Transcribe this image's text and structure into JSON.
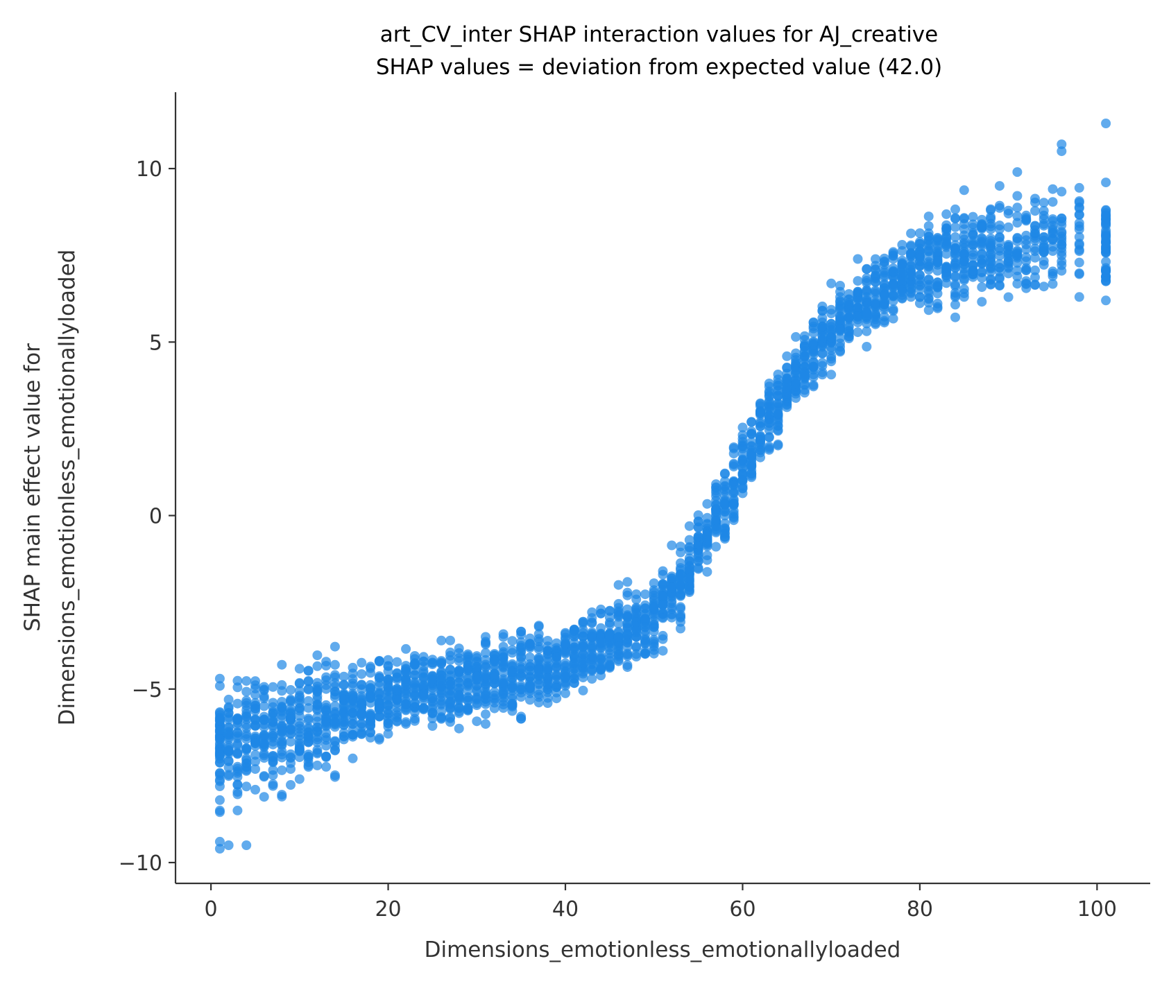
{
  "chart_data": {
    "type": "scatter",
    "title": "art_CV_inter SHAP interaction values for AJ_creative",
    "subtitle": "SHAP values = deviation from expected value (42.0)",
    "xlabel": "Dimensions_emotionless_emotionallyloaded",
    "ylabel_line1": "SHAP main effect value for",
    "ylabel_line2": "Dimensions_emotionless_emotionallyloaded",
    "xlim": [
      -4,
      106
    ],
    "ylim": [
      -10.6,
      12.2
    ],
    "xticks": [
      0,
      20,
      40,
      60,
      80,
      100
    ],
    "xtick_labels": [
      "0",
      "20",
      "40",
      "60",
      "80",
      "100"
    ],
    "yticks": [
      -10,
      -5,
      0,
      5,
      10
    ],
    "ytick_labels": [
      "−10",
      "−5",
      "0",
      "5",
      "10"
    ],
    "grid": false,
    "point_color": "#1e88e5",
    "point_opacity": 0.7,
    "series": [
      {
        "trend_x": [
          1,
          5,
          10,
          15,
          20,
          25,
          30,
          35,
          40,
          45,
          50,
          53,
          55,
          58,
          60,
          62,
          65,
          68,
          70,
          73,
          75,
          78,
          80,
          85,
          90,
          95,
          101
        ],
        "trend_y": [
          -6.6,
          -6.3,
          -6.0,
          -5.6,
          -5.3,
          -5.0,
          -4.8,
          -4.5,
          -4.2,
          -3.6,
          -2.9,
          -2.0,
          -1.0,
          0.4,
          1.5,
          2.5,
          3.6,
          4.6,
          5.3,
          6.0,
          6.4,
          6.9,
          7.2,
          7.5,
          7.8,
          7.9,
          8.0
        ],
        "outliers": [
          {
            "x": 1,
            "y": -9.6
          },
          {
            "x": 1,
            "y": -9.4
          },
          {
            "x": 2,
            "y": -9.5
          },
          {
            "x": 4,
            "y": -9.5
          },
          {
            "x": 1,
            "y": -8.5
          },
          {
            "x": 1,
            "y": -8.2
          },
          {
            "x": 3,
            "y": -8.5
          },
          {
            "x": 1,
            "y": -4.7
          },
          {
            "x": 96,
            "y": 10.7
          },
          {
            "x": 96,
            "y": 10.5
          },
          {
            "x": 101,
            "y": 11.3
          },
          {
            "x": 91,
            "y": 9.9
          },
          {
            "x": 89,
            "y": 9.5
          },
          {
            "x": 101,
            "y": 9.6
          },
          {
            "x": 27,
            "y": -3.6
          },
          {
            "x": 33,
            "y": -3.5
          },
          {
            "x": 37,
            "y": -3.2
          },
          {
            "x": 18,
            "y": -4.4
          },
          {
            "x": 22,
            "y": -4.5
          },
          {
            "x": 12,
            "y": -7.2
          },
          {
            "x": 16,
            "y": -7.0
          },
          {
            "x": 8,
            "y": -8.1
          },
          {
            "x": 5,
            "y": -7.9
          },
          {
            "x": 46,
            "y": -2.0
          },
          {
            "x": 51,
            "y": -1.6
          },
          {
            "x": 54,
            "y": -0.7
          },
          {
            "x": 57,
            "y": 0.8
          },
          {
            "x": 98,
            "y": 6.3
          },
          {
            "x": 101,
            "y": 6.2
          },
          {
            "x": 94,
            "y": 6.6
          },
          {
            "x": 85,
            "y": 6.3
          },
          {
            "x": 82,
            "y": 6.4
          }
        ]
      }
    ]
  }
}
